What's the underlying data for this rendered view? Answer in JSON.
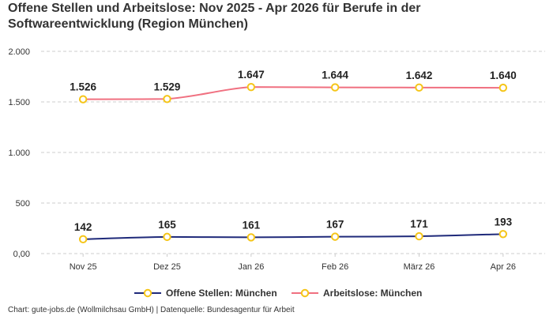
{
  "chart_data": {
    "type": "line",
    "title": "Offene Stellen und Arbeitslose: Nov 2025 - Apr 2026 für Berufe in der\nSoftwareentwicklung (Region München)",
    "categories": [
      "Nov 25",
      "Dez 25",
      "Jan 26",
      "Feb 26",
      "März 26",
      "Apr 26"
    ],
    "series": [
      {
        "name": "Offene Stellen: München",
        "values": [
          142,
          165,
          161,
          167,
          171,
          193
        ],
        "labels": [
          "142",
          "165",
          "161",
          "167",
          "171",
          "193"
        ],
        "color": "#1f2a7a"
      },
      {
        "name": "Arbeitslose: München",
        "values": [
          1526,
          1529,
          1647,
          1644,
          1642,
          1640
        ],
        "labels": [
          "1.526",
          "1.529",
          "1.647",
          "1.644",
          "1.642",
          "1.640"
        ],
        "color": "#f07080"
      }
    ],
    "ylim": [
      0,
      2000
    ],
    "yticks": [
      0,
      500,
      1000,
      1500,
      2000
    ],
    "ytick_labels": [
      "0,00",
      "500",
      "1.000",
      "1.500",
      "2.000"
    ],
    "xlabel": "",
    "ylabel": "",
    "grid": true,
    "legend_position": "bottom",
    "marker_color": "#f5c518",
    "footer": "Chart: gute-jobs.de (Wollmilchsau GmbH) | Datenquelle: Bundesagentur für Arbeit"
  }
}
